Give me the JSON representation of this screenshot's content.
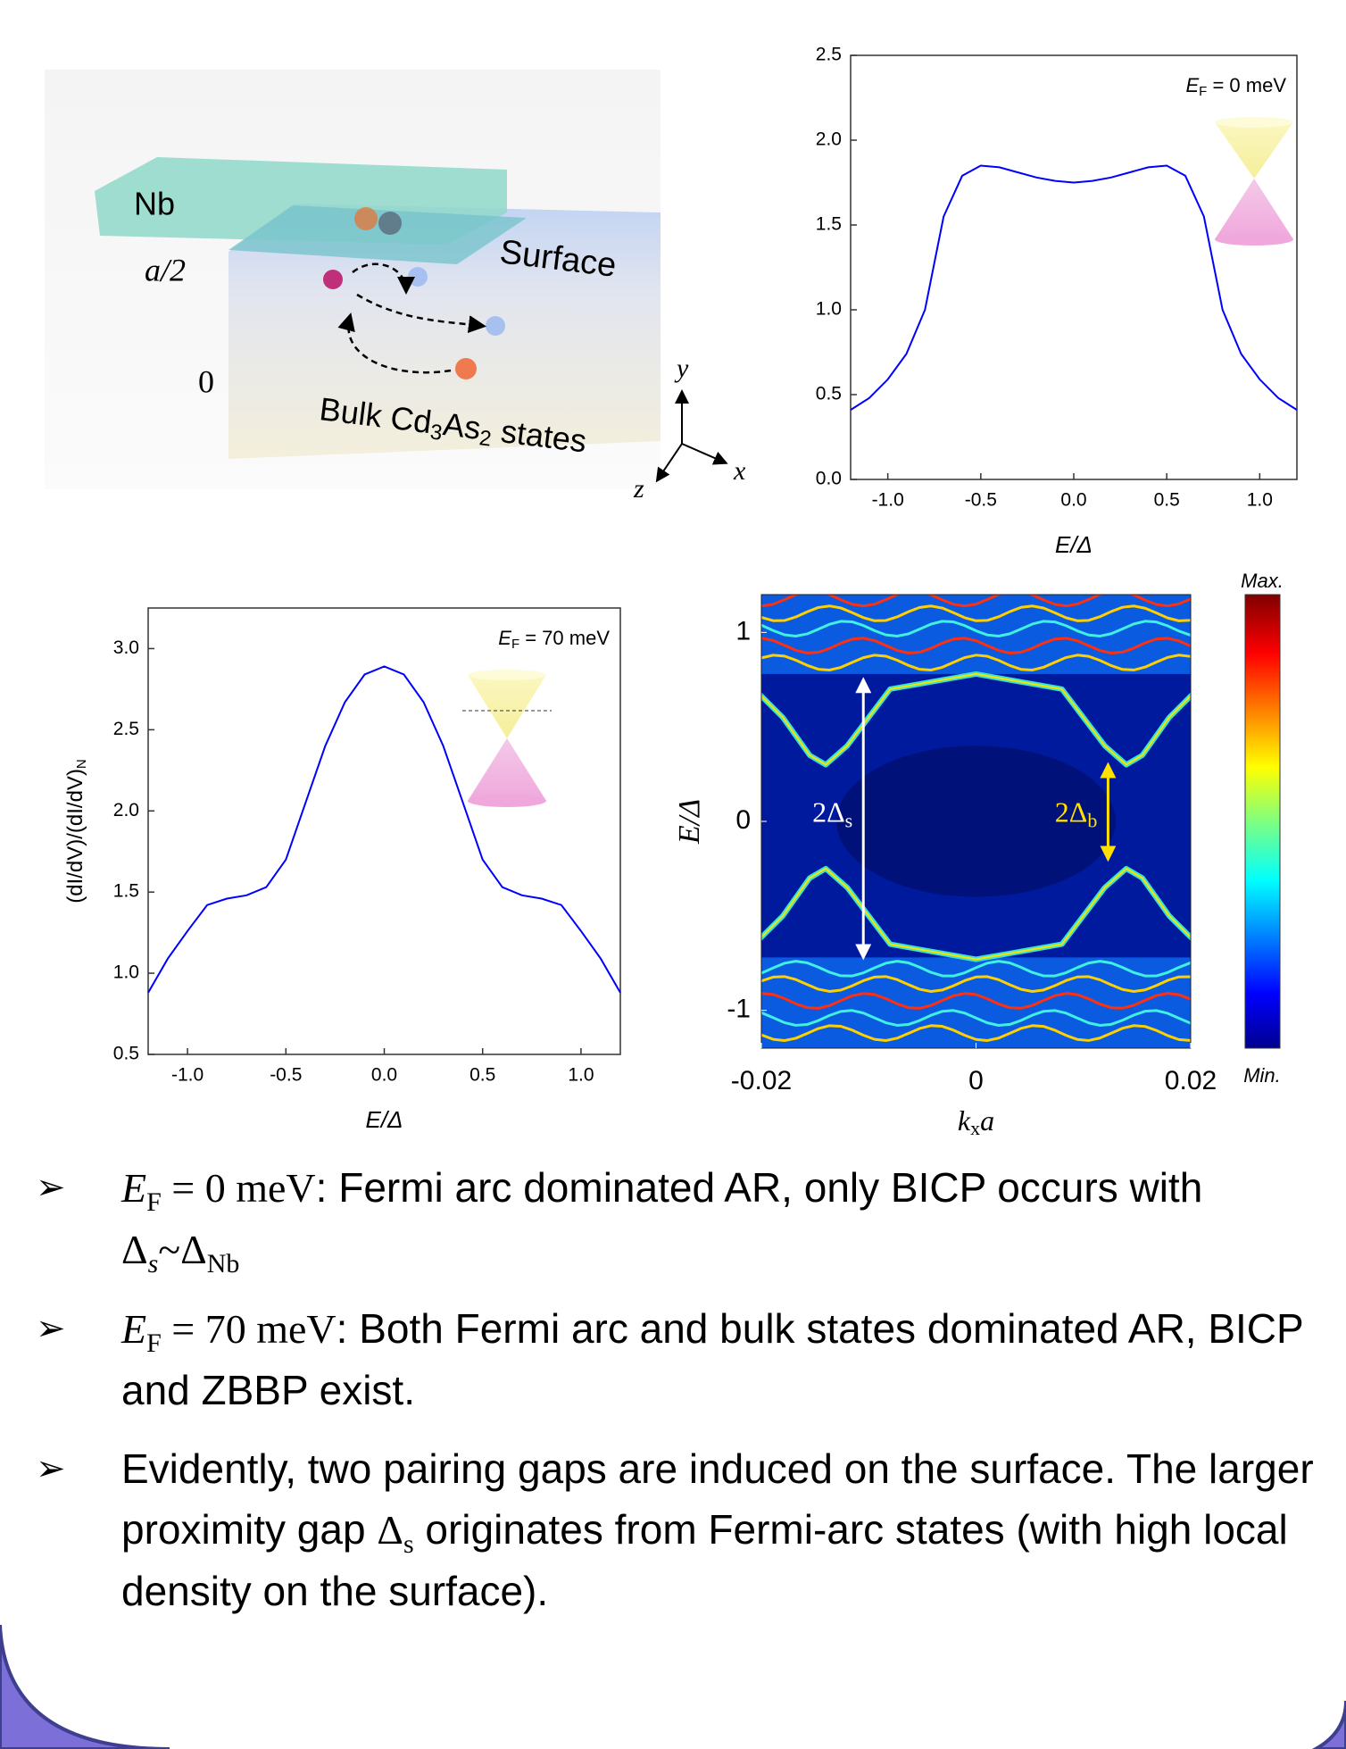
{
  "schematic": {
    "nb": "Nb",
    "half": "a/2",
    "zero": "0",
    "surface": "Surface",
    "bulk": [
      "Bulk Cd",
      "3",
      "As",
      "2",
      " states"
    ],
    "axis_y": "y",
    "axis_x": "x",
    "axis_z": "z"
  },
  "chart_data": [
    {
      "type": "line",
      "annotation": [
        "E",
        "F",
        " = 0 meV"
      ],
      "x_label": "E/Δ",
      "color": "#0000ff",
      "x": [
        -1.2,
        -1.1,
        -1.0,
        -0.9,
        -0.8,
        -0.7,
        -0.6,
        -0.5,
        -0.4,
        -0.3,
        -0.2,
        -0.1,
        0,
        0.1,
        0.2,
        0.3,
        0.4,
        0.5,
        0.6,
        0.7,
        0.8,
        0.9,
        1.0,
        1.1,
        1.2
      ],
      "values": [
        0.41,
        0.48,
        0.59,
        0.74,
        1.0,
        1.55,
        1.79,
        1.85,
        1.84,
        1.81,
        1.78,
        1.76,
        1.75,
        1.76,
        1.78,
        1.81,
        1.84,
        1.85,
        1.79,
        1.55,
        1.0,
        0.74,
        0.59,
        0.48,
        0.41
      ],
      "xlim": [
        -1.2,
        1.2
      ],
      "ylim": [
        0,
        2.5
      ],
      "xticks": [
        {
          "value": -1,
          "label": "-1.0"
        },
        {
          "value": -0.5,
          "label": "-0.5"
        },
        {
          "value": 0,
          "label": "0.0"
        },
        {
          "value": 0.5,
          "label": "0.5"
        },
        {
          "value": 1,
          "label": "1.0"
        }
      ],
      "yticks": [
        {
          "value": 0,
          "label": "0.0"
        },
        {
          "value": 0.5,
          "label": "0.5"
        },
        {
          "value": 1,
          "label": "1.0"
        },
        {
          "value": 1.5,
          "label": "1.5"
        },
        {
          "value": 2,
          "label": "2.0"
        },
        {
          "value": 2.5,
          "label": "2.5"
        }
      ]
    },
    {
      "type": "line",
      "annotation": [
        "E",
        "F",
        " = 70 meV"
      ],
      "x_label": "E/Δ",
      "y_label": [
        "(dI/dV)/(dI/dV)",
        "N"
      ],
      "color": "#0000ff",
      "x": [
        -1.2,
        -1.1,
        -1.0,
        -0.9,
        -0.8,
        -0.7,
        -0.6,
        -0.5,
        -0.4,
        -0.3,
        -0.2,
        -0.1,
        0,
        0.1,
        0.2,
        0.3,
        0.4,
        0.5,
        0.6,
        0.7,
        0.8,
        0.9,
        1.0,
        1.1,
        1.2
      ],
      "values": [
        0.88,
        1.09,
        1.26,
        1.42,
        1.46,
        1.48,
        1.53,
        1.7,
        2.05,
        2.4,
        2.67,
        2.84,
        2.89,
        2.84,
        2.67,
        2.4,
        2.05,
        1.7,
        1.53,
        1.48,
        1.46,
        1.42,
        1.26,
        1.09,
        0.88
      ],
      "xlim": [
        -1.2,
        1.2
      ],
      "ylim": [
        0.5,
        3.25
      ],
      "xticks": [
        {
          "value": -1,
          "label": "-1.0"
        },
        {
          "value": -0.5,
          "label": "-0.5"
        },
        {
          "value": 0,
          "label": "0.0"
        },
        {
          "value": 0.5,
          "label": "0.5"
        },
        {
          "value": 1,
          "label": "1.0"
        }
      ],
      "yticks": [
        {
          "value": 0.5,
          "label": "0.5"
        },
        {
          "value": 1,
          "label": "1.0"
        },
        {
          "value": 1.5,
          "label": "1.5"
        },
        {
          "value": 2,
          "label": "2.0"
        },
        {
          "value": 2.5,
          "label": "2.5"
        },
        {
          "value": 3,
          "label": "3.0"
        }
      ]
    },
    {
      "type": "heatmap",
      "x_label": [
        "k",
        "x",
        "a"
      ],
      "y_label": "E/Δ",
      "xlim": [
        -0.02,
        0.02
      ],
      "ylim": [
        -1.2,
        1.2
      ],
      "xticks": [
        -0.02,
        0,
        0.02
      ],
      "yticks": [
        -1,
        0,
        1
      ],
      "colorbar_labels": [
        "Max.",
        "Min."
      ],
      "annotations": [
        [
          "2Δ",
          "s"
        ],
        [
          "2Δ",
          "b"
        ]
      ]
    }
  ],
  "bullets": {
    "marker": "➢",
    "items": [
      [
        "E",
        "F",
        " = 0 meV",
        ": Fermi arc dominated AR, only BICP occurs with ",
        "Δ",
        "s",
        "~Δ",
        "Nb"
      ],
      [
        "E",
        "F",
        " = 70 meV",
        ": Both Fermi arc and bulk states dominated AR, BICP and ZBBP exist."
      ],
      [
        "Evidently, two pairing gaps are induced on the surface. The larger proximity gap ",
        "Δ",
        "s",
        " originates from Fermi-arc states (with high local density on the surface)."
      ]
    ]
  }
}
